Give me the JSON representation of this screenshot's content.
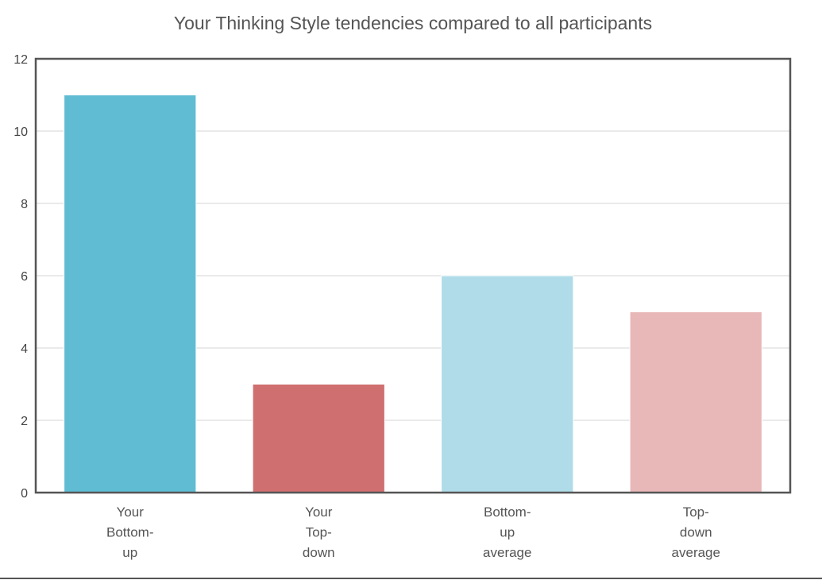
{
  "chart_data": {
    "type": "bar",
    "title": "Your Thinking Style tendencies compared to all participants",
    "xlabel": "",
    "ylabel": "",
    "categories": [
      [
        "Your",
        "Bottom-",
        "up"
      ],
      [
        "Your",
        "Top-",
        "down"
      ],
      [
        "Bottom-",
        "up",
        "average"
      ],
      [
        "Top-",
        "down",
        "average"
      ]
    ],
    "values": [
      11,
      3,
      6,
      5
    ],
    "colors": [
      "#5fbcd3",
      "#d06f70",
      "#afdce8",
      "#e8b7b8"
    ],
    "ylim": [
      0,
      12
    ],
    "yticks": [
      0,
      2,
      4,
      6,
      8,
      10,
      12
    ],
    "grid": true,
    "legend": "none"
  }
}
